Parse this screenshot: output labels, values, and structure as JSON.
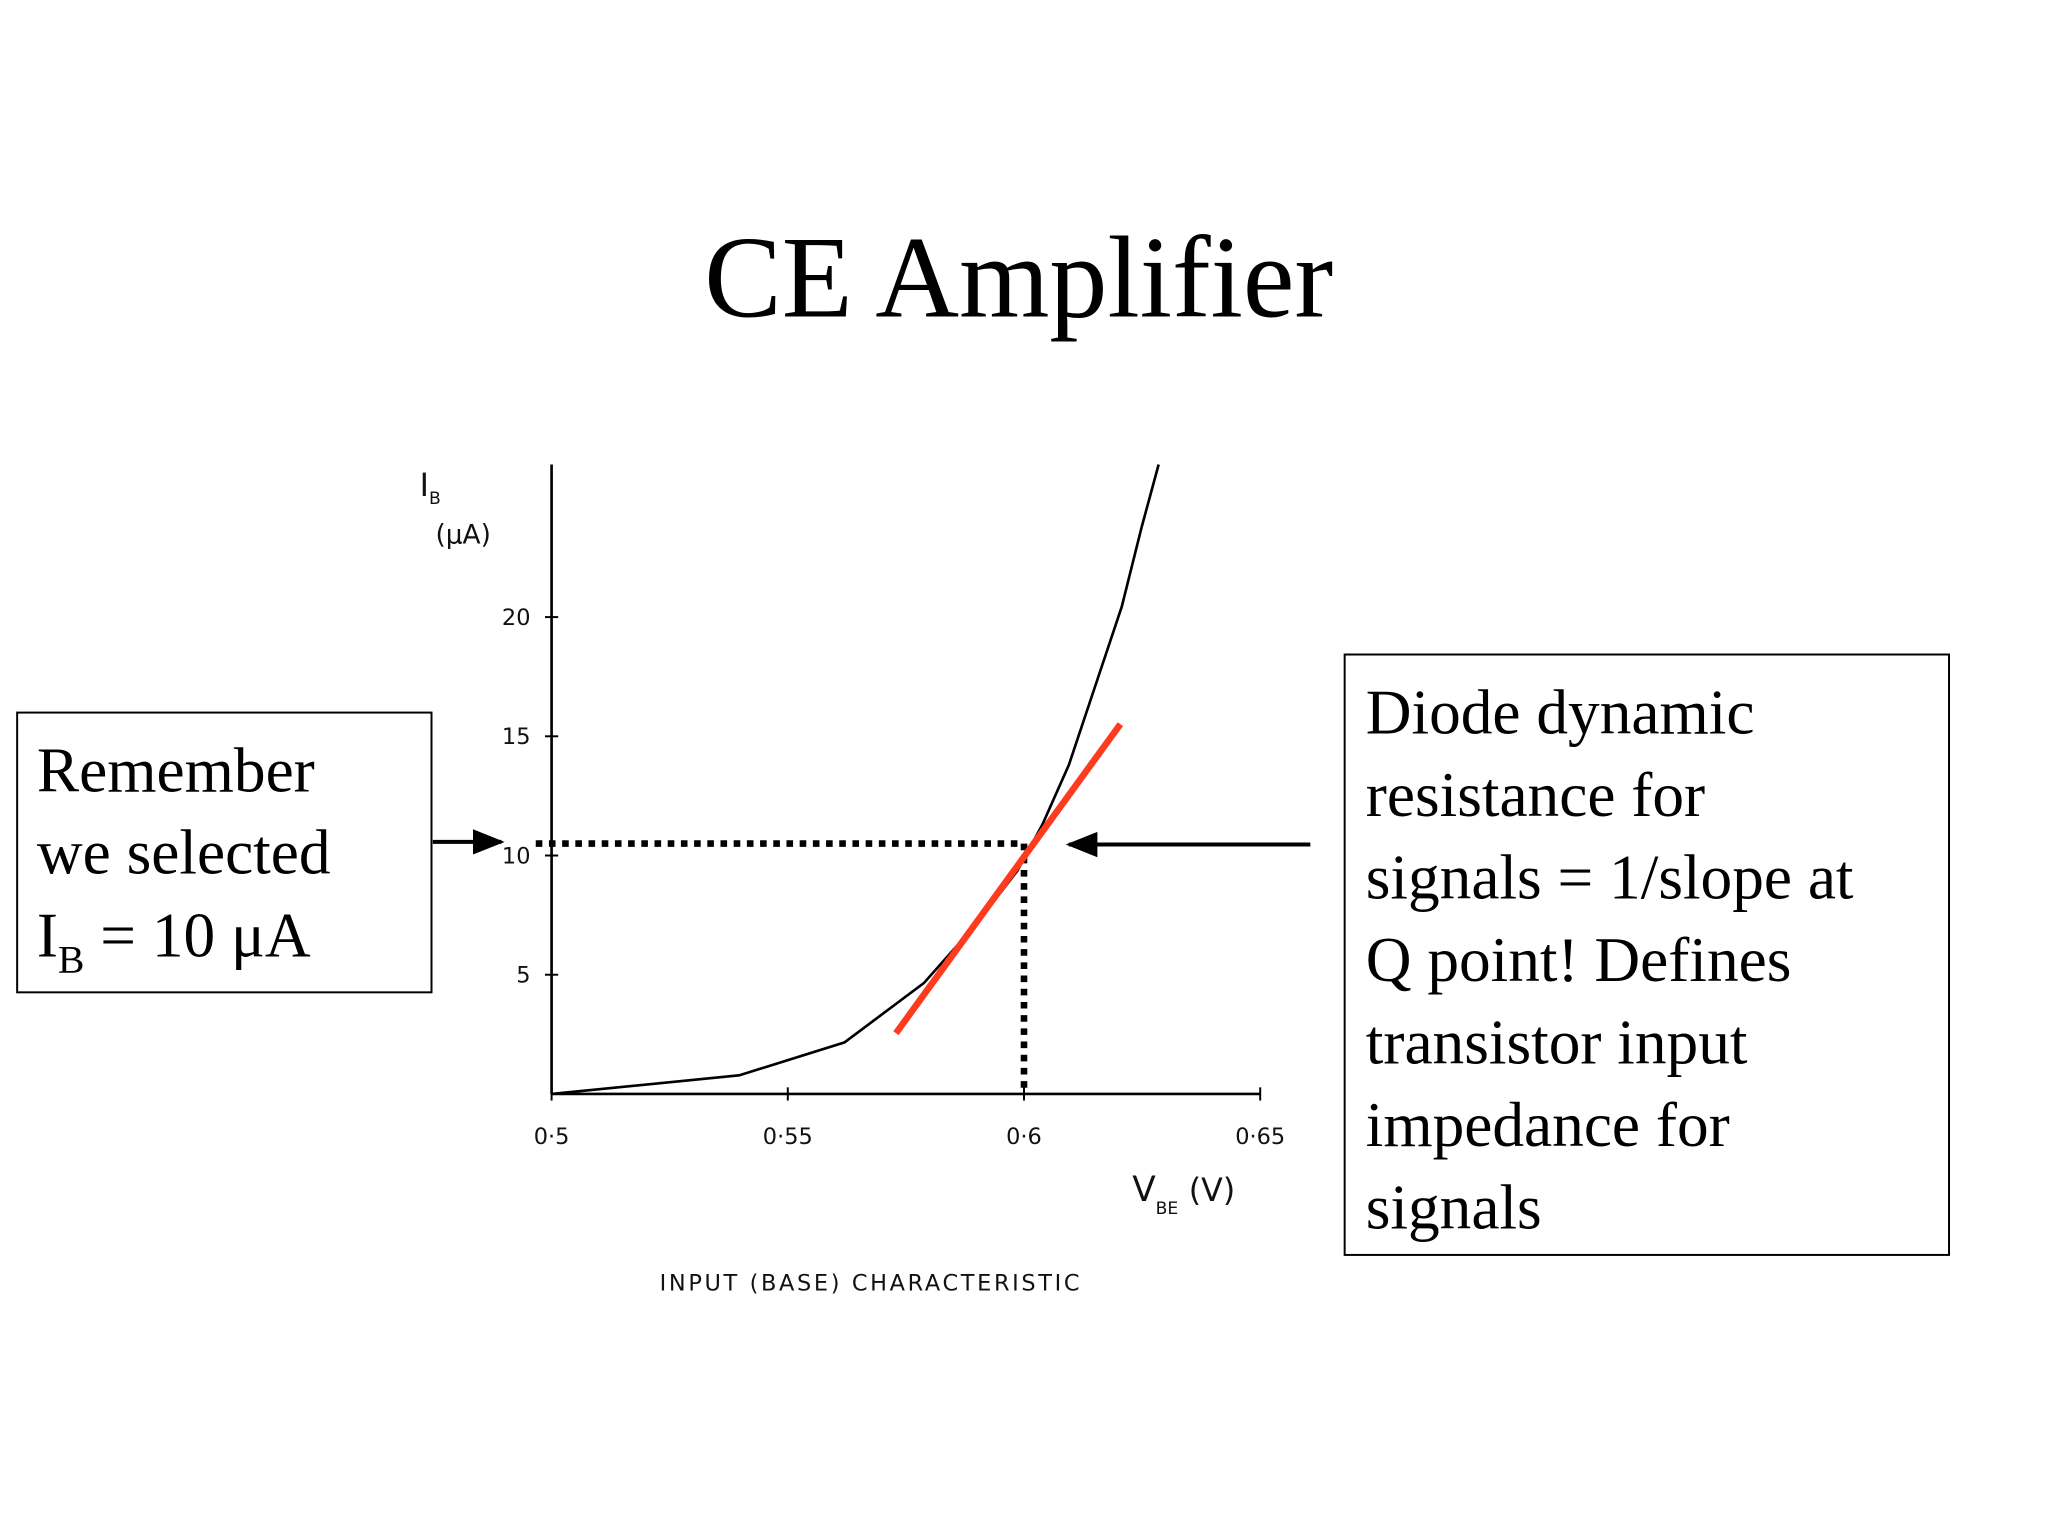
{
  "slide": {
    "title": "CE Amplifier",
    "left_box": {
      "lines": [
        "Remember",
        "we selected"
      ],
      "last_line": {
        "main": "I",
        "sub": "B",
        "rest": " = 10  μA"
      }
    },
    "right_box": {
      "lines": [
        "Diode dynamic",
        "resistance for",
        "signals = 1/slope at",
        "Q point! Defines",
        "transistor input",
        "impedance for",
        "signals"
      ]
    }
  },
  "chart_data": {
    "type": "line",
    "caption": "INPUT (BASE) CHARACTERISTIC",
    "ylabel": {
      "main": "I",
      "sub": "B",
      "unit": "(μA)"
    },
    "xlabel": {
      "main": "V",
      "sub": "BE",
      "unit": "(V)"
    },
    "xlim": [
      0.5,
      0.65
    ],
    "ylim": [
      0,
      26.4
    ],
    "xticks": [
      {
        "value": 0.5,
        "label": "0·5"
      },
      {
        "value": 0.55,
        "label": "0·55"
      },
      {
        "value": 0.6,
        "label": "0·6"
      },
      {
        "value": 0.65,
        "label": "0·65"
      }
    ],
    "yticks": [
      5,
      10,
      15,
      20
    ],
    "series": [
      {
        "color": "#000000",
        "x": [
          0.5,
          0.5397,
          0.562,
          0.5788,
          0.59,
          0.5986,
          0.6039,
          0.6095,
          0.6151,
          0.6207,
          0.6249,
          0.6285
        ],
        "values": [
          0,
          0.78,
          2.16,
          4.65,
          7.15,
          9.36,
          11.3,
          13.8,
          17.12,
          20.44,
          23.77,
          26.4
        ]
      },
      {
        "color": "#ff3b1f",
        "x": [
          0.5729,
          0.6204
        ],
        "values": [
          2.55,
          15.51
        ]
      }
    ],
    "q_point": {
      "x": 0.6,
      "y": 10.5
    }
  }
}
